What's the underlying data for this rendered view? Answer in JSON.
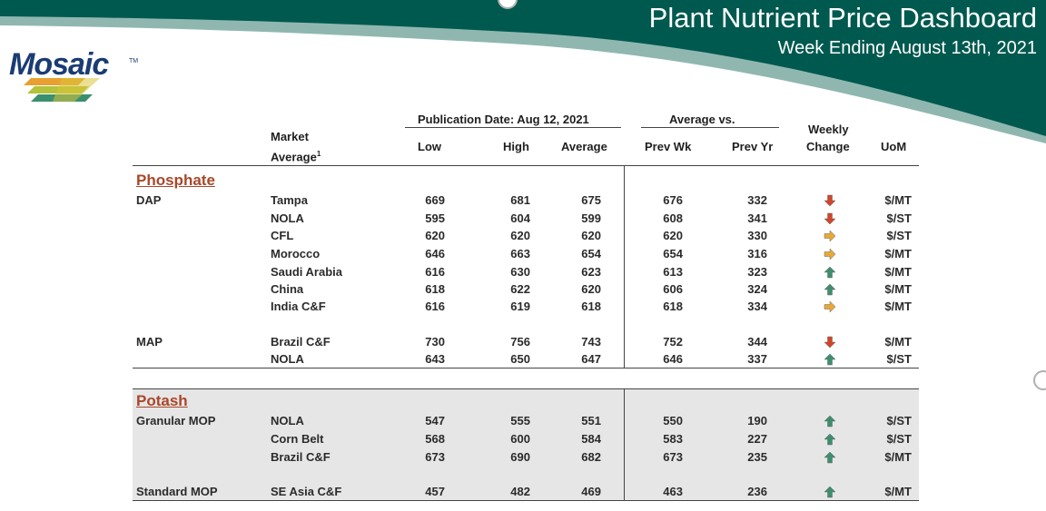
{
  "header": {
    "title": "Plant Nutrient Price Dashboard",
    "subtitle": "Week Ending August 13th, 2021"
  },
  "logo": {
    "text": "Mosaic",
    "tm": "TM"
  },
  "colors": {
    "banner": "#00594f",
    "banner_light": "#8fb7b0",
    "section": "#a9472a",
    "up": "#3e8e6e",
    "down": "#d2452a",
    "flat": "#e8a838"
  },
  "columns": {
    "market_avg_line1": "Market",
    "market_avg_line2": "Average",
    "footnote": "1",
    "pub_date": "Publication Date:  Aug 12, 2021",
    "avg_vs": "Average  vs.",
    "low": "Low",
    "high": "High",
    "average": "Average",
    "prev_wk": "Prev Wk",
    "prev_yr": "Prev Yr",
    "weekly_line1": "Weekly",
    "weekly_line2": "Change",
    "uom": "UoM"
  },
  "sections": [
    {
      "name": "Phosphate",
      "rows": [
        {
          "product": "DAP",
          "market": "Tampa",
          "low": "669",
          "high": "681",
          "avg": "675",
          "prev_wk": "676",
          "prev_yr": "332",
          "change": "down",
          "uom": "$/MT"
        },
        {
          "product": "",
          "market": "NOLA",
          "low": "595",
          "high": "604",
          "avg": "599",
          "prev_wk": "608",
          "prev_yr": "341",
          "change": "down",
          "uom": "$/ST"
        },
        {
          "product": "",
          "market": "CFL",
          "low": "620",
          "high": "620",
          "avg": "620",
          "prev_wk": "620",
          "prev_yr": "330",
          "change": "flat",
          "uom": "$/ST"
        },
        {
          "product": "",
          "market": "Morocco",
          "low": "646",
          "high": "663",
          "avg": "654",
          "prev_wk": "654",
          "prev_yr": "316",
          "change": "flat",
          "uom": "$/MT"
        },
        {
          "product": "",
          "market": "Saudi Arabia",
          "low": "616",
          "high": "630",
          "avg": "623",
          "prev_wk": "613",
          "prev_yr": "323",
          "change": "up",
          "uom": "$/MT"
        },
        {
          "product": "",
          "market": "China",
          "low": "618",
          "high": "622",
          "avg": "620",
          "prev_wk": "606",
          "prev_yr": "324",
          "change": "up",
          "uom": "$/MT"
        },
        {
          "product": "",
          "market": "India C&F",
          "low": "616",
          "high": "619",
          "avg": "618",
          "prev_wk": "618",
          "prev_yr": "334",
          "change": "flat",
          "uom": "$/MT"
        },
        {
          "product": "MAP",
          "market": "Brazil C&F",
          "low": "730",
          "high": "756",
          "avg": "743",
          "prev_wk": "752",
          "prev_yr": "344",
          "change": "down",
          "uom": "$/MT"
        },
        {
          "product": "",
          "market": "NOLA",
          "low": "643",
          "high": "650",
          "avg": "647",
          "prev_wk": "646",
          "prev_yr": "337",
          "change": "up",
          "uom": "$/ST"
        }
      ]
    },
    {
      "name": "Potash",
      "rows": [
        {
          "product": "Granular MOP",
          "market": "NOLA",
          "low": "547",
          "high": "555",
          "avg": "551",
          "prev_wk": "550",
          "prev_yr": "190",
          "change": "up",
          "uom": "$/ST"
        },
        {
          "product": "",
          "market": "Corn Belt",
          "low": "568",
          "high": "600",
          "avg": "584",
          "prev_wk": "583",
          "prev_yr": "227",
          "change": "up",
          "uom": "$/ST"
        },
        {
          "product": "",
          "market": "Brazil C&F",
          "low": "673",
          "high": "690",
          "avg": "682",
          "prev_wk": "673",
          "prev_yr": "235",
          "change": "up",
          "uom": "$/MT"
        },
        {
          "product": "Standard MOP",
          "market": "SE Asia C&F",
          "low": "457",
          "high": "482",
          "avg": "469",
          "prev_wk": "463",
          "prev_yr": "236",
          "change": "up",
          "uom": "$/MT"
        }
      ]
    }
  ]
}
